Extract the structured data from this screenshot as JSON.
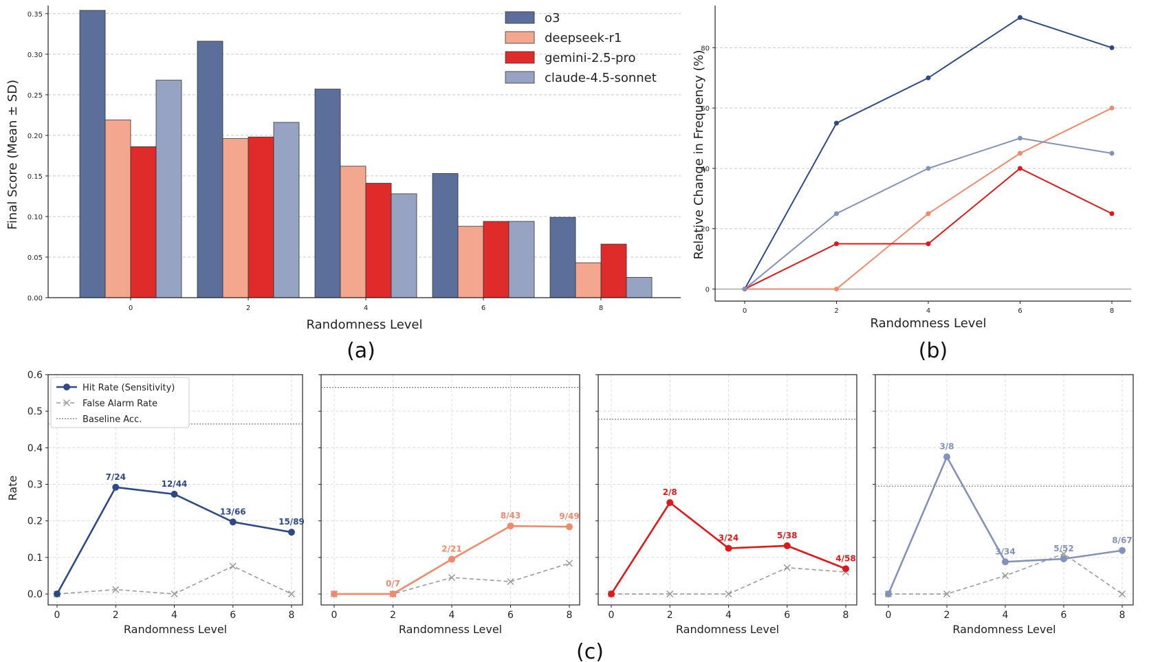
{
  "colors": {
    "o3": "#5b6f9a",
    "deepseek": "#f3a78f",
    "gemini": "#e02b2b",
    "claude": "#97a3c2",
    "o3_line": "#2e4a86",
    "deepseek_line": "#f08a6c",
    "gemini_line": "#dc1a1a",
    "claude_line": "#8392b9",
    "false_alarm": "#9a9a9a"
  },
  "panel_labels": {
    "a": "(a)",
    "b": "(b)",
    "c": "(c)"
  },
  "chart_data": [
    {
      "id": "a",
      "type": "bar",
      "xlabel": "Randomness Level",
      "ylabel": "Final Score (Mean ± SD)",
      "categories": [
        "0",
        "2",
        "4",
        "6",
        "8"
      ],
      "ylim": [
        0,
        0.36
      ],
      "yticks": [
        "0.00",
        "0.05",
        "0.10",
        "0.15",
        "0.20",
        "0.25",
        "0.30",
        "0.35"
      ],
      "grid": "horizontal dashed",
      "legend": "top-right",
      "series": [
        {
          "name": "o3",
          "values": [
            0.354,
            0.316,
            0.257,
            0.153,
            0.099
          ]
        },
        {
          "name": "deepseek-r1",
          "values": [
            0.219,
            0.196,
            0.162,
            0.088,
            0.043
          ]
        },
        {
          "name": "gemini-2.5-pro",
          "values": [
            0.186,
            0.198,
            0.141,
            0.094,
            0.066
          ]
        },
        {
          "name": "claude-4.5-sonnet",
          "values": [
            0.268,
            0.216,
            0.128,
            0.094,
            0.025
          ]
        }
      ]
    },
    {
      "id": "b",
      "type": "line",
      "xlabel": "Randomness Level",
      "ylabel": "Relative Change in Frequency (%)",
      "x": [
        0,
        2,
        4,
        6,
        8
      ],
      "xticks": [
        "0",
        "2",
        "4",
        "6",
        "8"
      ],
      "ylim": [
        -4,
        94
      ],
      "yticks": [
        "0",
        "20",
        "40",
        "60",
        "80"
      ],
      "grid": "horizontal dashed",
      "series": [
        {
          "values": [
            0,
            55,
            70,
            90,
            80
          ]
        },
        {
          "values": [
            0,
            0,
            25,
            45,
            60
          ]
        },
        {
          "values": [
            0,
            15,
            15,
            40,
            25
          ]
        },
        {
          "values": [
            0,
            25,
            40,
            50,
            45
          ]
        }
      ]
    },
    {
      "id": "c",
      "type": "line",
      "xlabel": "Randomness Level",
      "ylabel": "Rate",
      "x": [
        0,
        2,
        4,
        6,
        8
      ],
      "xticks": [
        "0",
        "2",
        "4",
        "6",
        "8"
      ],
      "ylim": [
        -0.03,
        0.6
      ],
      "yticks": [
        "0.0",
        "0.1",
        "0.2",
        "0.3",
        "0.4",
        "0.5",
        "0.6"
      ],
      "grid": "dashed",
      "legend": "top-left",
      "legend_entries": [
        "Hit Rate (Sensitivity)",
        "False Alarm Rate",
        "Baseline Acc."
      ],
      "panels": [
        {
          "hit_rate": [
            0,
            0.292,
            0.273,
            0.197,
            0.169
          ],
          "false_alarm": [
            0,
            0.012,
            0,
            0.076,
            0
          ],
          "baseline": 0.465,
          "fractions": [
            "",
            "7/24",
            "12/44",
            "13/66",
            "15/89"
          ]
        },
        {
          "hit_rate": [
            0,
            0,
            0.095,
            0.186,
            0.184
          ],
          "false_alarm": [
            0,
            0,
            0.045,
            0.034,
            0.084
          ],
          "baseline": 0.565,
          "fractions": [
            "",
            "0/7",
            "2/21",
            "8/43",
            "9/49"
          ]
        },
        {
          "hit_rate": [
            0,
            0.25,
            0.125,
            0.132,
            0.069
          ],
          "false_alarm": [
            0,
            0,
            0,
            0.072,
            0.06
          ],
          "baseline": 0.478,
          "fractions": [
            "",
            "2/8",
            "3/24",
            "5/38",
            "4/58"
          ]
        },
        {
          "hit_rate": [
            0,
            0.375,
            0.088,
            0.096,
            0.119
          ],
          "false_alarm": [
            0,
            0,
            0.05,
            0.11,
            0
          ],
          "baseline": 0.295,
          "fractions": [
            "",
            "3/8",
            "3/34",
            "5/52",
            "8/67"
          ]
        }
      ]
    }
  ]
}
